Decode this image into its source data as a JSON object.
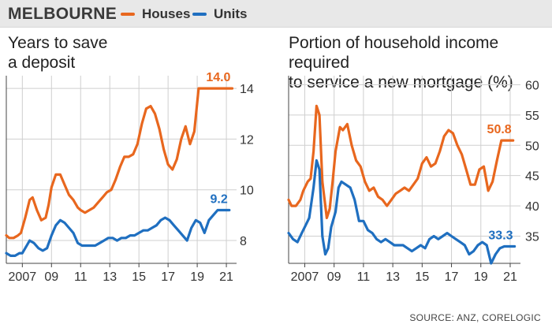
{
  "header": {
    "region": "MELBOURNE",
    "legend": [
      {
        "label": "Houses",
        "color": "#e8671e"
      },
      {
        "label": "Units",
        "color": "#1f6fc0"
      }
    ]
  },
  "source": "SOURCE: ANZ, CORELOGIC",
  "chart_data": [
    {
      "type": "line",
      "title_lines": [
        "Years to save",
        "a deposit"
      ],
      "x_tick_labels": [
        "2007",
        "09",
        "11",
        "13",
        "15",
        "17",
        "19",
        "21"
      ],
      "x_tick_values": [
        2007,
        2009,
        2011,
        2013,
        2015,
        2017,
        2019,
        2021
      ],
      "xlim": [
        2005.9,
        2021.7
      ],
      "ylim": [
        7.1,
        14.5
      ],
      "y_ticks": [
        8,
        10,
        12,
        14
      ],
      "y_axis_side": "right",
      "grid": true,
      "series": [
        {
          "name": "Houses",
          "color": "#e8671e",
          "end_label": "14.0",
          "x": [
            2005.9,
            2006.1,
            2006.4,
            2006.7,
            2006.9,
            2007.2,
            2007.5,
            2007.7,
            2008.0,
            2008.3,
            2008.6,
            2008.8,
            2009.0,
            2009.3,
            2009.6,
            2009.9,
            2010.2,
            2010.5,
            2010.8,
            2011.0,
            2011.3,
            2011.6,
            2011.9,
            2012.2,
            2012.5,
            2012.8,
            2013.1,
            2013.4,
            2013.7,
            2014.0,
            2014.3,
            2014.6,
            2014.9,
            2015.2,
            2015.5,
            2015.8,
            2016.1,
            2016.4,
            2016.7,
            2017.0,
            2017.3,
            2017.6,
            2017.9,
            2018.2,
            2018.5,
            2018.8,
            2019.1,
            2019.4,
            2019.7,
            2020.0,
            2020.3,
            2020.6,
            2020.9,
            2021.2,
            2021.4
          ],
          "y": [
            8.2,
            8.1,
            8.1,
            8.2,
            8.3,
            8.9,
            9.6,
            9.7,
            9.2,
            8.8,
            8.9,
            9.4,
            10.1,
            10.6,
            10.6,
            10.2,
            9.8,
            9.6,
            9.3,
            9.2,
            9.1,
            9.2,
            9.3,
            9.5,
            9.7,
            9.9,
            10.0,
            10.4,
            10.9,
            11.3,
            11.3,
            11.4,
            11.8,
            12.6,
            13.2,
            13.3,
            13.0,
            12.4,
            11.6,
            11.0,
            10.8,
            11.2,
            12.0,
            12.5,
            11.8,
            12.3,
            14.0,
            14.0,
            14.0,
            14.0,
            14.0,
            14.0,
            14.0,
            14.0,
            14.0
          ]
        },
        {
          "name": "Units",
          "color": "#1f6fc0",
          "end_label": "9.2",
          "x": [
            2005.9,
            2006.2,
            2006.5,
            2006.8,
            2007.0,
            2007.3,
            2007.5,
            2007.8,
            2008.1,
            2008.4,
            2008.7,
            2009.0,
            2009.3,
            2009.6,
            2009.9,
            2010.2,
            2010.5,
            2010.8,
            2011.1,
            2011.4,
            2011.7,
            2012.0,
            2012.3,
            2012.6,
            2012.9,
            2013.2,
            2013.5,
            2013.8,
            2014.1,
            2014.4,
            2014.7,
            2015.0,
            2015.3,
            2015.6,
            2015.9,
            2016.2,
            2016.5,
            2016.8,
            2017.1,
            2017.4,
            2017.7,
            2018.0,
            2018.3,
            2018.6,
            2018.9,
            2019.2,
            2019.5,
            2019.8,
            2020.1,
            2020.4,
            2020.7,
            2021.0,
            2021.2
          ],
          "y": [
            7.5,
            7.4,
            7.4,
            7.5,
            7.5,
            7.8,
            8.0,
            7.9,
            7.7,
            7.6,
            7.7,
            8.2,
            8.6,
            8.8,
            8.7,
            8.5,
            8.3,
            7.9,
            7.8,
            7.8,
            7.8,
            7.8,
            7.9,
            8.0,
            8.1,
            8.1,
            8.0,
            8.1,
            8.1,
            8.2,
            8.2,
            8.3,
            8.4,
            8.4,
            8.5,
            8.6,
            8.8,
            8.9,
            8.8,
            8.6,
            8.4,
            8.2,
            8.0,
            8.5,
            8.8,
            8.7,
            8.3,
            8.8,
            9.0,
            9.2,
            9.2,
            9.2,
            9.2
          ]
        }
      ]
    },
    {
      "type": "line",
      "title_lines": [
        "Portion of household income required",
        "to service a new mortgage (%)"
      ],
      "x_tick_labels": [
        "2007",
        "09",
        "11",
        "13",
        "15",
        "17",
        "19",
        "21"
      ],
      "x_tick_values": [
        2007,
        2009,
        2011,
        2013,
        2015,
        2017,
        2019,
        2021
      ],
      "xlim": [
        2005.9,
        2021.7
      ],
      "ylim": [
        30.5,
        61.5
      ],
      "y_ticks": [
        35,
        40,
        45,
        50,
        55,
        60
      ],
      "y_axis_side": "right",
      "grid": true,
      "series": [
        {
          "name": "Houses",
          "color": "#e8671e",
          "end_label": "50.8",
          "x": [
            2005.9,
            2006.1,
            2006.4,
            2006.7,
            2006.9,
            2007.2,
            2007.4,
            2007.6,
            2007.8,
            2008.0,
            2008.2,
            2008.5,
            2008.7,
            2008.9,
            2009.1,
            2009.4,
            2009.6,
            2009.9,
            2010.2,
            2010.5,
            2010.8,
            2011.1,
            2011.4,
            2011.7,
            2012.0,
            2012.3,
            2012.6,
            2012.9,
            2013.2,
            2013.5,
            2013.8,
            2014.1,
            2014.4,
            2014.7,
            2015.0,
            2015.3,
            2015.6,
            2015.9,
            2016.2,
            2016.5,
            2016.8,
            2017.1,
            2017.4,
            2017.7,
            2018.0,
            2018.3,
            2018.6,
            2018.9,
            2019.2,
            2019.5,
            2019.8,
            2020.1,
            2020.4,
            2020.7,
            2021.0,
            2021.2
          ],
          "y": [
            41.0,
            40.0,
            40.0,
            41.0,
            42.5,
            44.0,
            44.5,
            49.0,
            56.5,
            55.0,
            44.0,
            38.0,
            39.5,
            44.0,
            49.0,
            53.0,
            52.5,
            53.5,
            50.0,
            47.5,
            46.5,
            44.0,
            42.5,
            43.0,
            41.5,
            41.0,
            40.0,
            41.0,
            42.0,
            42.5,
            43.0,
            42.5,
            43.5,
            44.5,
            47.0,
            48.0,
            46.5,
            47.0,
            49.0,
            51.5,
            52.5,
            52.0,
            50.0,
            48.5,
            46.0,
            43.5,
            43.5,
            46.0,
            46.5,
            42.5,
            44.0,
            47.5,
            50.8,
            50.8,
            50.8,
            50.8
          ]
        },
        {
          "name": "Units",
          "color": "#1f6fc0",
          "end_label": "33.3",
          "x": [
            2005.9,
            2006.2,
            2006.5,
            2006.8,
            2007.0,
            2007.3,
            2007.6,
            2007.8,
            2008.0,
            2008.2,
            2008.4,
            2008.6,
            2008.8,
            2009.1,
            2009.3,
            2009.5,
            2009.8,
            2010.1,
            2010.4,
            2010.7,
            2011.0,
            2011.3,
            2011.6,
            2011.9,
            2012.2,
            2012.5,
            2012.8,
            2013.1,
            2013.4,
            2013.7,
            2014.0,
            2014.3,
            2014.6,
            2014.9,
            2015.2,
            2015.5,
            2015.8,
            2016.1,
            2016.4,
            2016.7,
            2017.0,
            2017.3,
            2017.6,
            2017.9,
            2018.2,
            2018.5,
            2018.8,
            2019.1,
            2019.4,
            2019.7,
            2020.0,
            2020.3,
            2020.6,
            2020.9,
            2021.1,
            2021.3
          ],
          "y": [
            35.5,
            34.5,
            34.0,
            35.5,
            36.5,
            38.0,
            43.0,
            47.5,
            46.0,
            35.0,
            32.0,
            33.0,
            36.5,
            39.0,
            43.0,
            44.0,
            43.5,
            43.0,
            41.0,
            37.5,
            37.5,
            36.0,
            35.5,
            34.5,
            34.0,
            34.5,
            34.0,
            33.5,
            33.5,
            33.5,
            33.0,
            32.5,
            33.0,
            33.5,
            33.0,
            34.5,
            35.0,
            34.5,
            35.0,
            35.5,
            35.0,
            34.5,
            34.0,
            33.5,
            32.0,
            32.5,
            33.5,
            34.0,
            33.5,
            30.5,
            32.0,
            33.0,
            33.3,
            33.3,
            33.3,
            33.3
          ]
        }
      ]
    }
  ]
}
